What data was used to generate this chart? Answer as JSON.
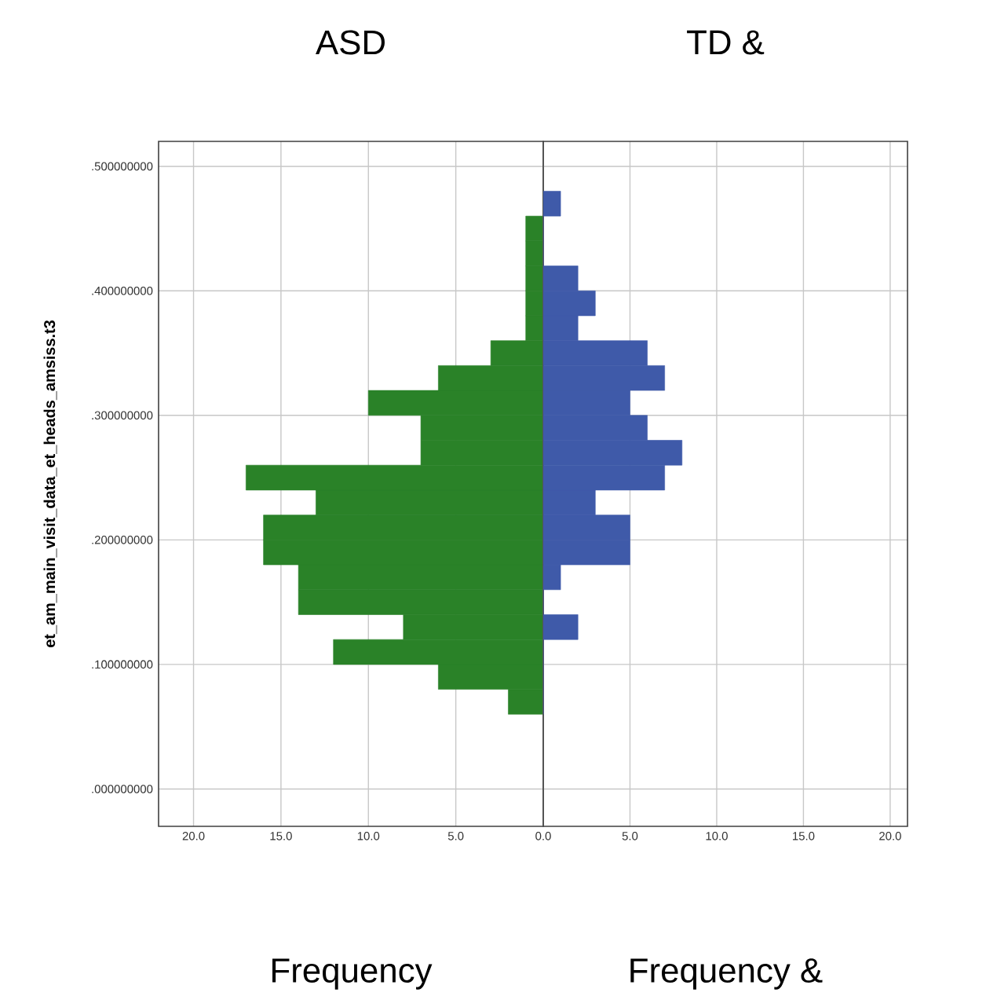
{
  "chart_data": [
    {
      "type": "histogram",
      "orientation": "horizontal",
      "title": "ASD",
      "xlabel": "Frequency",
      "ylabel": "et_am_main_visit_data_et_heads_amsiss.t3",
      "color": "#2a8228",
      "grid": true,
      "bins": [
        0.06,
        0.08,
        0.1,
        0.12,
        0.14,
        0.16,
        0.18,
        0.2,
        0.22,
        0.24,
        0.26,
        0.28,
        0.3,
        0.32,
        0.34,
        0.36,
        0.38,
        0.4,
        0.42,
        0.44,
        0.46,
        0.48
      ],
      "values": [
        2,
        6,
        12,
        8,
        14,
        14,
        16,
        16,
        13,
        17,
        7,
        7,
        10,
        6,
        3,
        1,
        1,
        1,
        1,
        1,
        0
      ],
      "xlim": [
        22,
        0
      ],
      "xticks": [
        {
          "value": 20,
          "label": "20.0"
        },
        {
          "value": 15,
          "label": "15.0"
        },
        {
          "value": 10,
          "label": "10.0"
        },
        {
          "value": 5,
          "label": "5.0"
        },
        {
          "value": 0,
          "label": "0.0"
        }
      ],
      "ylim": [
        -0.03,
        0.52
      ],
      "yticks": [
        {
          "value": 0,
          "label": ".000000000"
        },
        {
          "value": 0.1,
          "label": ".100000000"
        },
        {
          "value": 0.2,
          "label": ".200000000"
        },
        {
          "value": 0.3,
          "label": ".300000000"
        },
        {
          "value": 0.4,
          "label": ".400000000"
        },
        {
          "value": 0.5,
          "label": ".500000000"
        }
      ]
    },
    {
      "type": "histogram",
      "orientation": "horizontal",
      "title": "TD &",
      "xlabel": "Frequency &",
      "color": "#3f5aa9",
      "grid": true,
      "tick_labels": "x",
      "bins": [
        0.06,
        0.08,
        0.1,
        0.12,
        0.14,
        0.16,
        0.18,
        0.2,
        0.22,
        0.24,
        0.26,
        0.28,
        0.3,
        0.32,
        0.34,
        0.36,
        0.38,
        0.4,
        0.42,
        0.44,
        0.46,
        0.48
      ],
      "values": [
        0,
        0,
        0,
        2,
        0,
        1,
        5,
        5,
        3,
        7,
        8,
        6,
        5,
        7,
        6,
        2,
        3,
        2,
        0,
        0,
        1
      ],
      "xlim": [
        0,
        21
      ],
      "xticks": [
        {
          "value": 0,
          "label": null
        },
        {
          "value": 5,
          "label": "5.0"
        },
        {
          "value": 10,
          "label": "10.0"
        },
        {
          "value": 15,
          "label": "15.0"
        },
        {
          "value": 20,
          "label": "20.0"
        }
      ],
      "ylim": [
        -0.03,
        0.52
      ],
      "yticks": [
        0,
        0.1,
        0.2,
        0.3,
        0.4,
        0.5
      ]
    }
  ]
}
